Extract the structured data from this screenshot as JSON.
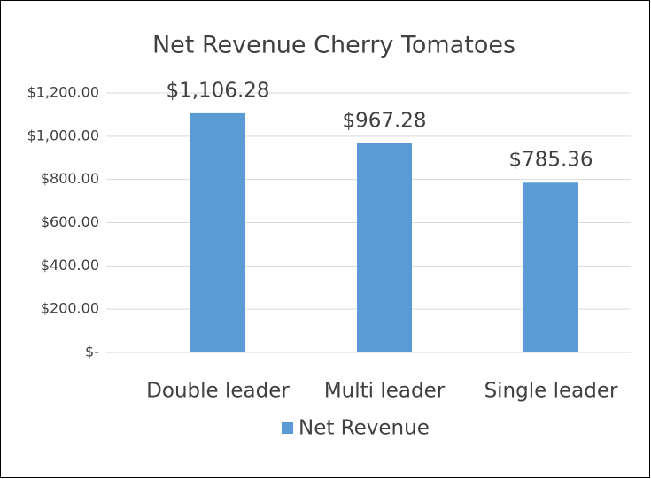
{
  "chart_data": {
    "type": "bar",
    "title": "Net Revenue Cherry Tomatoes",
    "categories": [
      "Double leader",
      "Multi leader",
      "Single leader"
    ],
    "series": [
      {
        "name": "Net Revenue",
        "color": "#5b9bd5",
        "values": [
          1106.28,
          967.28,
          785.36
        ],
        "value_labels": [
          "$1,106.28",
          "$967.28",
          "$785.36"
        ]
      }
    ],
    "ylim": [
      0,
      1200
    ],
    "yticks": [
      {
        "value": 0,
        "label": "$-"
      },
      {
        "value": 200,
        "label": "$200.00"
      },
      {
        "value": 400,
        "label": "$400.00"
      },
      {
        "value": 600,
        "label": "$600.00"
      },
      {
        "value": 800,
        "label": "$800.00"
      },
      {
        "value": 1000,
        "label": "$1,000.00"
      },
      {
        "value": 1200,
        "label": "$1,200.00"
      }
    ],
    "grid": true,
    "legend": "bottom"
  }
}
